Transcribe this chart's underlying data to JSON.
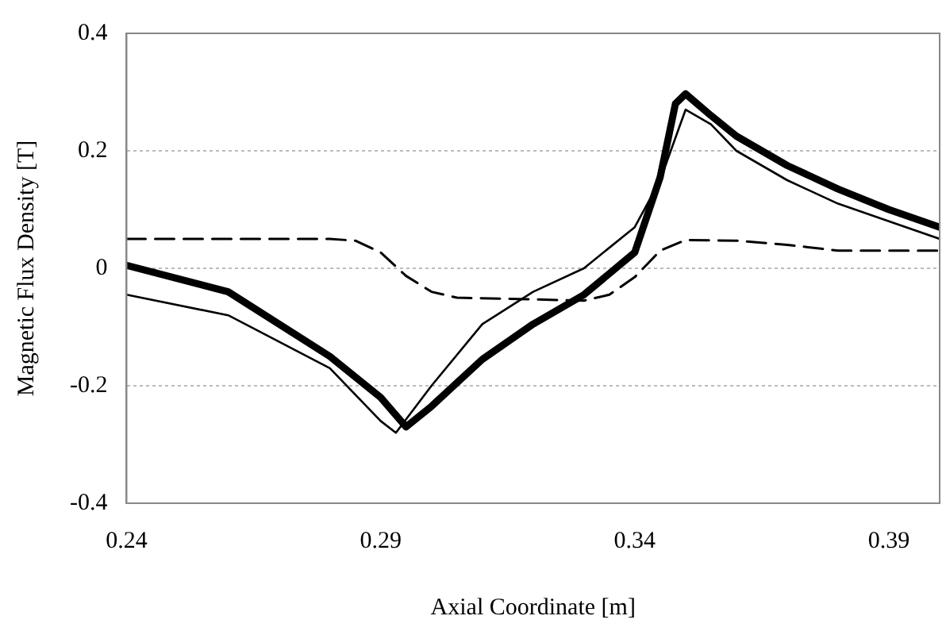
{
  "chart_data": {
    "type": "line",
    "xlabel": "Axial Coordinate [m]",
    "ylabel": "Magnetic Flux Density [T]",
    "xlim": [
      0.24,
      0.4
    ],
    "xticks": [
      0.24,
      0.29,
      0.34,
      0.39
    ],
    "ylim": [
      -0.4,
      0.4
    ],
    "yticks": [
      -0.4,
      -0.2,
      0,
      0.2,
      0.4
    ],
    "grid": "y",
    "legend": false,
    "marker": "none",
    "series": [
      {
        "color": "#000000",
        "line_style": "solid",
        "x": [
          0.24,
          0.26,
          0.28,
          0.29,
          0.295,
          0.3,
          0.31,
          0.32,
          0.33,
          0.34,
          0.345,
          0.348,
          0.35,
          0.355,
          0.36,
          0.37,
          0.38,
          0.39,
          0.4
        ],
        "values": [
          0.005,
          -0.04,
          -0.15,
          -0.22,
          -0.27,
          -0.235,
          -0.155,
          -0.095,
          -0.045,
          0.027,
          0.155,
          0.28,
          0.297,
          0.26,
          0.225,
          0.175,
          0.135,
          0.1,
          0.07
        ]
      },
      {
        "color": "#000000",
        "line_style": "solid",
        "x": [
          0.24,
          0.26,
          0.28,
          0.29,
          0.293,
          0.3,
          0.31,
          0.32,
          0.33,
          0.34,
          0.345,
          0.35,
          0.355,
          0.36,
          0.37,
          0.38,
          0.39,
          0.4
        ],
        "values": [
          -0.045,
          -0.08,
          -0.17,
          -0.26,
          -0.28,
          -0.2,
          -0.095,
          -0.04,
          0,
          0.07,
          0.15,
          0.27,
          0.245,
          0.2,
          0.15,
          0.11,
          0.08,
          0.05
        ]
      },
      {
        "color": "#000000",
        "line_style": "dashed",
        "x": [
          0.24,
          0.28,
          0.285,
          0.29,
          0.295,
          0.3,
          0.305,
          0.33,
          0.335,
          0.34,
          0.345,
          0.35,
          0.36,
          0.37,
          0.38,
          0.4
        ],
        "values": [
          0.05,
          0.05,
          0.047,
          0.027,
          -0.013,
          -0.04,
          -0.05,
          -0.055,
          -0.045,
          -0.015,
          0.03,
          0.048,
          0.047,
          0.04,
          0.03,
          0.03
        ]
      }
    ]
  }
}
